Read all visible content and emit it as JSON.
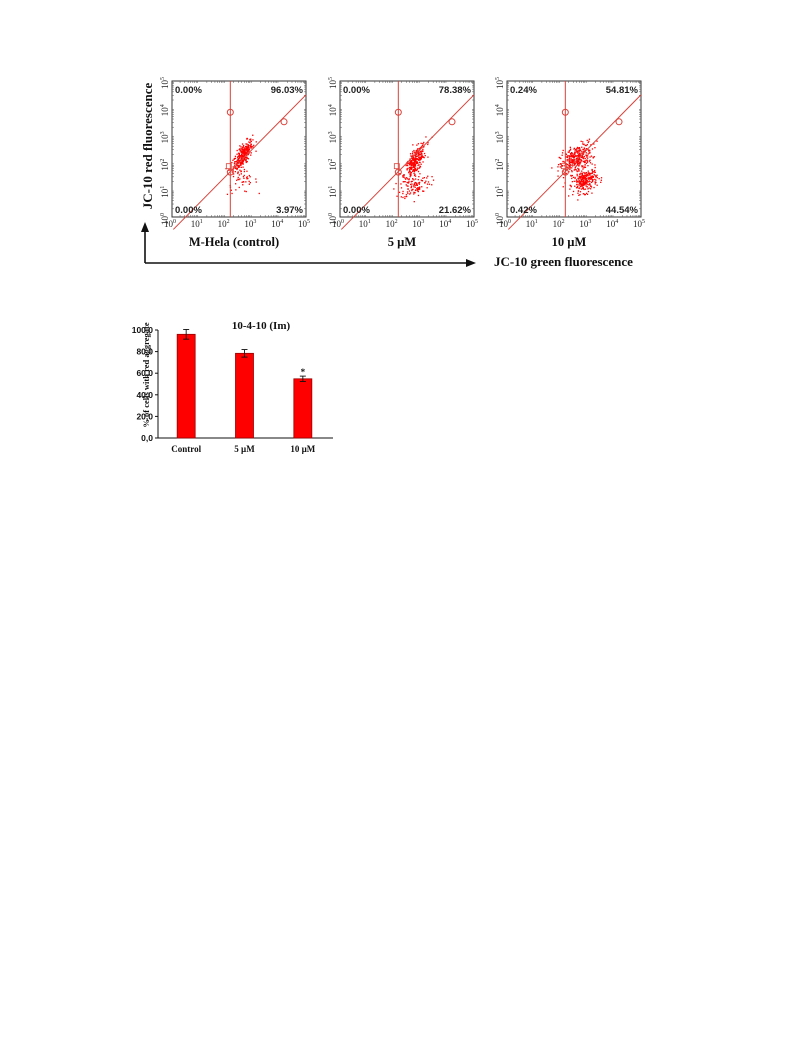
{
  "chart_data": [
    {
      "type": "scatter",
      "x_axis_label": "JC-10 green fluorescence",
      "y_axis_label": "JC-10 red fluorescence",
      "axis_scale": "log",
      "xlim": [
        1,
        100000
      ],
      "ylim": [
        1,
        100000
      ],
      "tick_labels": [
        "10",
        "10",
        "10",
        "10",
        "10",
        "10"
      ],
      "tick_exponents": [
        "0",
        "1",
        "2",
        "3",
        "4",
        "5"
      ],
      "gate_x": 150,
      "gate_y": 33,
      "panels": [
        {
          "label": "M-Hela (control)",
          "quadrants": {
            "upper_left": "0.00%",
            "upper_right": "96.03%",
            "lower_left": "0.00%",
            "lower_right": "3.97%"
          },
          "clusters": [
            {
              "cx": 2.62,
              "cy": 2.28,
              "sx": 0.18,
              "sy": 0.28,
              "rho": 0.72,
              "n": 300
            },
            {
              "cx": 2.6,
              "cy": 1.3,
              "sx": 0.28,
              "sy": 0.2,
              "rho": 0.2,
              "n": 40
            }
          ]
        },
        {
          "label": "5 µM",
          "quadrants": {
            "upper_left": "0.00%",
            "upper_right": "78.38%",
            "lower_left": "0.00%",
            "lower_right": "21.62%"
          },
          "clusters": [
            {
              "cx": 2.78,
              "cy": 2.05,
              "sx": 0.2,
              "sy": 0.32,
              "rho": 0.72,
              "n": 280
            },
            {
              "cx": 2.8,
              "cy": 1.2,
              "sx": 0.28,
              "sy": 0.22,
              "rho": 0.3,
              "n": 110
            }
          ]
        },
        {
          "label": "10 µM",
          "quadrants": {
            "upper_left": "0.24%",
            "upper_right": "54.81%",
            "lower_left": "0.42%",
            "lower_right": "44.54%"
          },
          "clusters": [
            {
              "cx": 2.55,
              "cy": 2.15,
              "sx": 0.3,
              "sy": 0.28,
              "rho": 0.5,
              "n": 330
            },
            {
              "cx": 2.9,
              "cy": 1.35,
              "sx": 0.22,
              "sy": 0.22,
              "rho": 0.3,
              "n": 260
            }
          ]
        }
      ]
    },
    {
      "type": "bar",
      "title": "10-4-10 (Im)",
      "ylabel": "% of cells with red aggregate",
      "categories": [
        "Control",
        "5 µM",
        "10 µM"
      ],
      "values": [
        96.0,
        78.4,
        54.8
      ],
      "errors": [
        4.5,
        3.5,
        2.5
      ],
      "significance": [
        "",
        "",
        "*"
      ],
      "ylim": [
        0,
        100
      ],
      "y_ticks": [
        "0,0",
        "20,0",
        "40,0",
        "60,0",
        "80,0",
        "100,0"
      ],
      "colors": {
        "bar": "#ff0000",
        "outline": "#990000"
      }
    }
  ],
  "colors": {
    "point": "#ff0000",
    "gate": "#d9423a"
  }
}
